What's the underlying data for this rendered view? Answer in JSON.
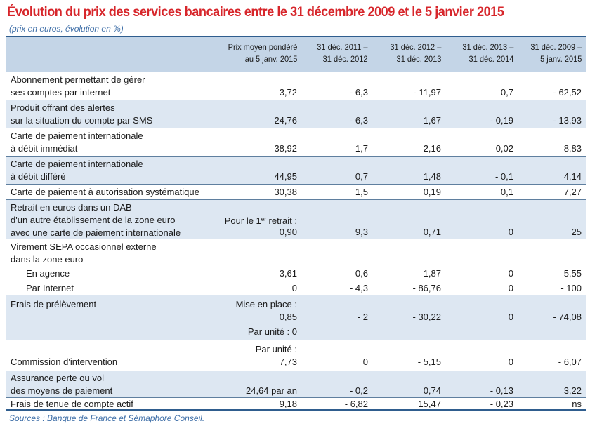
{
  "title": "Évolution du prix des services bancaires entre le 31 décembre 2009 et le 5 janvier 2015",
  "subtitle": "(prix en euros, évolution en %)",
  "headers": {
    "prix": "Prix moyen pondéré\nau 5 janv. 2015",
    "c1": "31 déc. 2011 –\n31 déc. 2012",
    "c2": "31 déc. 2012 –\n31 déc. 2013",
    "c3": "31 déc. 2013 –\n31 déc. 2014",
    "c4": "31 déc. 2009 –\n5 janv. 2015"
  },
  "rows": [
    {
      "label": "Abonnement permettant de gérer\nses comptes par internet",
      "prix": "3,72",
      "c1": "- 6,3",
      "c2": "- 11,97",
      "c3": "0,7",
      "c4": "- 62,52"
    },
    {
      "label": "Produit offrant des alertes\nsur la situation du compte par SMS",
      "prix": "24,76",
      "c1": "- 6,3",
      "c2": "1,67",
      "c3": "- 0,19",
      "c4": "- 13,93"
    },
    {
      "label": "Carte de paiement internationale\nà débit immédiat",
      "prix": "38,92",
      "c1": "1,7",
      "c2": "2,16",
      "c3": "0,02",
      "c4": "8,83"
    },
    {
      "label": "Carte de paiement internationale\nà débit différé",
      "prix": "44,95",
      "c1": "0,7",
      "c2": "1,48",
      "c3": "- 0,1",
      "c4": "4,14"
    },
    {
      "label": "Carte de paiement à autorisation systématique",
      "prix": "30,38",
      "c1": "1,5",
      "c2": "0,19",
      "c3": "0,1",
      "c4": "7,27"
    },
    {
      "label": "Retrait en euros dans un DAB\nd'un autre établissement de la zone euro\navec une carte de paiement internationale",
      "prix_pre": "Pour le 1",
      "prix_sup": "er",
      "prix_post": " retrait :",
      "prix": "0,90",
      "c1": "9,3",
      "c2": "0,71",
      "c3": "0",
      "c4": "25"
    },
    {
      "label": "Virement SEPA occasionnel externe\ndans la zone euro"
    },
    {
      "label": "En agence",
      "prix": "3,61",
      "c1": "0,6",
      "c2": "1,87",
      "c3": "0",
      "c4": "5,55"
    },
    {
      "label": "Par Internet",
      "prix": "0",
      "c1": "- 4,3",
      "c2": "- 86,76",
      "c3": "0",
      "c4": "- 100"
    },
    {
      "label": "Frais de prélèvement",
      "prix_a": "Mise en place :",
      "prix": "0,85",
      "prix_b": "Par unité : 0",
      "c1": "- 2",
      "c2": "- 30,22",
      "c3": "0",
      "c4": "- 74,08"
    },
    {
      "label": "Commission d'intervention",
      "prix_a": "Par unité :",
      "prix": "7,73",
      "c1": "0",
      "c2": "- 5,15",
      "c3": "0",
      "c4": "- 6,07"
    },
    {
      "label": "Assurance perte ou vol\ndes moyens de paiement",
      "prix": "24,64 par an",
      "c1": "- 0,2",
      "c2": "0,74",
      "c3": "- 0,13",
      "c4": "3,22"
    },
    {
      "label": "Frais de tenue de compte actif",
      "prix": "9,18",
      "c1": "- 6,82",
      "c2": "15,47",
      "c3": "- 0,23",
      "c4": "ns"
    }
  ],
  "source": "Sources : Banque de France et Sémaphore Conseil."
}
